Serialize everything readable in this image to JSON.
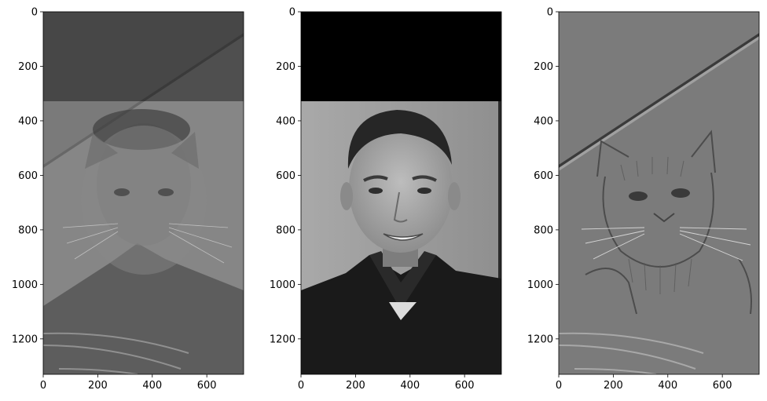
{
  "figure": {
    "background": "#ffffff",
    "panels": [
      {
        "id": "hybrid",
        "content": "hybrid image: low-pass man overlaid with high-pass cat",
        "xlim": [
          0,
          735
        ],
        "ylim": [
          1330,
          0
        ],
        "xticks": [
          0,
          200,
          400,
          600
        ],
        "yticks": [
          0,
          200,
          400,
          600,
          800,
          1000,
          1200
        ]
      },
      {
        "id": "man-lowpass",
        "content": "grayscale portrait of a smiling man on black-topped background",
        "xlim": [
          0,
          735
        ],
        "ylim": [
          1330,
          0
        ],
        "xticks": [
          0,
          200,
          400,
          600
        ],
        "yticks": [
          0,
          200,
          400,
          600,
          800,
          1000,
          1200
        ]
      },
      {
        "id": "cat-highpass",
        "content": "high-pass filtered cat on flat gray field",
        "xlim": [
          0,
          735
        ],
        "ylim": [
          1330,
          0
        ],
        "xticks": [
          0,
          200,
          400,
          600
        ],
        "yticks": [
          0,
          200,
          400,
          600,
          800,
          1000,
          1200
        ]
      }
    ]
  }
}
